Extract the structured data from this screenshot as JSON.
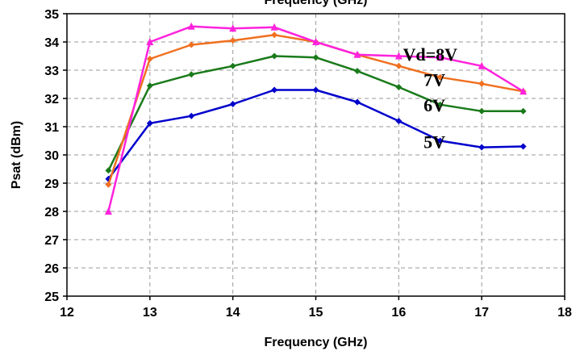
{
  "chart_data": {
    "type": "line",
    "title": "Frequency (GHz)",
    "xlabel": "Frequency (GHz)",
    "ylabel": "Psat (dBm)",
    "xlim": [
      12,
      18
    ],
    "ylim": [
      25,
      35
    ],
    "xticks": [
      12,
      13,
      14,
      15,
      16,
      17,
      18
    ],
    "yticks": [
      25,
      26,
      27,
      28,
      29,
      30,
      31,
      32,
      33,
      34,
      35
    ],
    "grid": true,
    "grid_style": "dashed",
    "legend": "none",
    "series": [
      {
        "name": "5V",
        "color": "#0000cc",
        "marker": "diamond",
        "x": [
          12.5,
          13,
          13.5,
          14,
          14.5,
          15,
          15.5,
          16,
          16.5,
          17,
          17.5
        ],
        "y": [
          29.15,
          31.12,
          31.38,
          31.8,
          32.3,
          32.3,
          31.87,
          31.2,
          30.5,
          30.27,
          30.3
        ]
      },
      {
        "name": "6V",
        "color": "#1a7a1a",
        "marker": "diamond",
        "x": [
          12.5,
          13,
          13.5,
          14,
          14.5,
          15,
          15.5,
          16,
          16.5,
          17,
          17.5
        ],
        "y": [
          29.45,
          32.45,
          32.85,
          33.15,
          33.5,
          33.45,
          32.97,
          32.4,
          31.78,
          31.55,
          31.55
        ]
      },
      {
        "name": "7V",
        "color": "#f07020",
        "marker": "diamond",
        "x": [
          12.5,
          13,
          13.5,
          14,
          14.5,
          15,
          15.5,
          16,
          16.5,
          17,
          17.5
        ],
        "y": [
          28.95,
          33.4,
          33.9,
          34.05,
          34.25,
          34.0,
          33.55,
          33.15,
          32.75,
          32.52,
          32.25
        ]
      },
      {
        "name": "Vd=8V",
        "color": "#ff22dd",
        "marker": "triangle",
        "x": [
          12.5,
          13,
          13.5,
          14,
          14.5,
          15,
          15.5,
          16,
          16.5,
          17,
          17.5
        ],
        "y": [
          28.0,
          34.0,
          34.55,
          34.48,
          34.52,
          34.0,
          33.55,
          33.5,
          33.45,
          33.15,
          32.25
        ]
      }
    ],
    "annotations": [
      {
        "text": "Vd=8V",
        "x": 16.05,
        "y": 33.35
      },
      {
        "text": "7V",
        "x": 16.3,
        "y": 32.45
      },
      {
        "text": "6V",
        "x": 16.3,
        "y": 31.55
      },
      {
        "text": "5V",
        "x": 16.3,
        "y": 30.25
      }
    ]
  }
}
